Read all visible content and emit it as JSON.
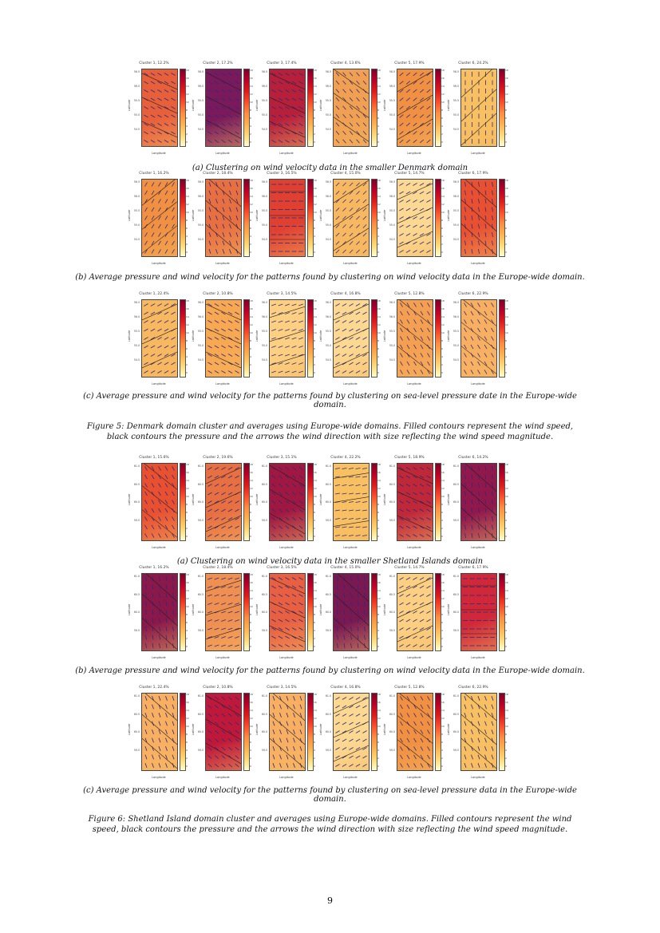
{
  "axis": {
    "xlabel": "Longitude",
    "ylabel": "Latitude",
    "cbar_ticks": [
      "18",
      "16",
      "14",
      "12",
      "10",
      "8",
      "6",
      "4",
      "2",
      "0"
    ],
    "denmark_yticks": [
      "56.5",
      "56.0",
      "55.5",
      "55.0",
      "54.5"
    ],
    "shetland_yticks": [
      "61.0",
      "60.5",
      "60.0",
      "59.5"
    ]
  },
  "figure5": {
    "rows": [
      {
        "caption": "(a) Clustering on wind velocity data in the smaller Denmark domain",
        "domain": "denmark",
        "panels": [
          {
            "title": "Cluster 1, 12.2%",
            "fill": "#e8603a",
            "angle": -30
          },
          {
            "title": "Cluster 2, 17.2%",
            "fill": "#7a1a5a",
            "angle": -35
          },
          {
            "title": "Cluster 3, 17.4%",
            "fill": "#b8203a",
            "angle": -30
          },
          {
            "title": "Cluster 4, 13.6%",
            "fill": "#f0a050",
            "angle": -50
          },
          {
            "title": "Cluster 5, 17.9%",
            "fill": "#f09040",
            "angle": 40
          },
          {
            "title": "Cluster 6, 24.2%",
            "fill": "#f8c060",
            "angle": 90
          }
        ]
      },
      {
        "caption": "(b) Average pressure and wind velocity for the patterns found by clustering on wind velocity data in the Europe-wide domain.",
        "domain": "denmark",
        "panels": [
          {
            "title": "Cluster 1, 16.2%",
            "fill": "#f09040",
            "angle": 60
          },
          {
            "title": "Cluster 2, 18.4%",
            "fill": "#e87040",
            "angle": -70
          },
          {
            "title": "Cluster 3, 16.5%",
            "fill": "#e04030",
            "angle": 0
          },
          {
            "title": "Cluster 4, 15.0%",
            "fill": "#f8b860",
            "angle": 45
          },
          {
            "title": "Cluster 5, 14.7%",
            "fill": "#fcd890",
            "angle": 30
          },
          {
            "title": "Cluster 6, 17.9%",
            "fill": "#e85030",
            "angle": -80
          }
        ]
      },
      {
        "caption": "(c) Average pressure and wind velocity for the patterns found by clustering on sea-level pressure date in the Europe-wide domain.",
        "domain": "denmark",
        "panels": [
          {
            "title": "Cluster 1, 22.4%",
            "fill": "#f8b860",
            "angle": 30
          },
          {
            "title": "Cluster 2, 10.8%",
            "fill": "#f8a850",
            "angle": -30
          },
          {
            "title": "Cluster 3, 14.5%",
            "fill": "#fcd080",
            "angle": 20
          },
          {
            "title": "Cluster 4, 16.8%",
            "fill": "#fcd890",
            "angle": 30
          },
          {
            "title": "Cluster 5, 12.8%",
            "fill": "#f5a050",
            "angle": -60
          },
          {
            "title": "Cluster 6, 22.9%",
            "fill": "#f8b060",
            "angle": -60
          }
        ]
      }
    ],
    "caption": "Figure 5: Denmark domain cluster and averages using Europe-wide domains. Filled contours represent the wind speed, black contours the pressure and the arrows the wind direction with size reflecting the wind speed magnitude."
  },
  "figure6": {
    "rows": [
      {
        "caption": "(a) Clustering on wind velocity data in the smaller Shetland Islands domain",
        "domain": "shetland",
        "panels": [
          {
            "title": "Cluster 1, 15.6%",
            "fill": "#e85030",
            "angle": -60
          },
          {
            "title": "Cluster 2, 19.6%",
            "fill": "#e87040",
            "angle": 30
          },
          {
            "title": "Cluster 3, 15.1%",
            "fill": "#a01840",
            "angle": -40
          },
          {
            "title": "Cluster 4, 22.2%",
            "fill": "#f8c060",
            "angle": 10
          },
          {
            "title": "Cluster 5, 18.9%",
            "fill": "#c02838",
            "angle": -30
          },
          {
            "title": "Cluster 6, 14.2%",
            "fill": "#90184a",
            "angle": -80
          }
        ]
      },
      {
        "caption": "(b) Average pressure and wind velocity for the patterns found by clustering on wind velocity data in the Europe-wide domain.",
        "domain": "shetland",
        "panels": [
          {
            "title": "Cluster 1, 16.2%",
            "fill": "#8a1848",
            "angle": -80
          },
          {
            "title": "Cluster 2, 18.4%",
            "fill": "#f09050",
            "angle": 20
          },
          {
            "title": "Cluster 3, 16.5%",
            "fill": "#e86040",
            "angle": -30
          },
          {
            "title": "Cluster 4, 15.0%",
            "fill": "#7a1850",
            "angle": -80
          },
          {
            "title": "Cluster 5, 14.7%",
            "fill": "#fcd080",
            "angle": 30
          },
          {
            "title": "Cluster 6, 17.9%",
            "fill": "#d02838",
            "angle": 0
          }
        ]
      },
      {
        "caption": "(c) Average pressure and wind velocity for the patterns found by clustering on sea-level pressure data in the Europe-wide domain.",
        "domain": "shetland",
        "panels": [
          {
            "title": "Cluster 1, 22.4%",
            "fill": "#f8b060",
            "angle": -70
          },
          {
            "title": "Cluster 2, 10.8%",
            "fill": "#c01838",
            "angle": -40
          },
          {
            "title": "Cluster 3, 14.5%",
            "fill": "#f8b060",
            "angle": -70
          },
          {
            "title": "Cluster 4, 16.8%",
            "fill": "#fcd890",
            "angle": 30
          },
          {
            "title": "Cluster 5, 12.8%",
            "fill": "#f09040",
            "angle": -60
          },
          {
            "title": "Cluster 6, 22.9%",
            "fill": "#f8c060",
            "angle": -70
          }
        ]
      }
    ],
    "caption": "Figure 6: Shetland Island domain cluster and averages using Europe-wide domains. Filled contours represent the wind speed, black contours the pressure and the arrows the wind direction with size reflecting the wind speed magnitude."
  },
  "page_number": "9"
}
